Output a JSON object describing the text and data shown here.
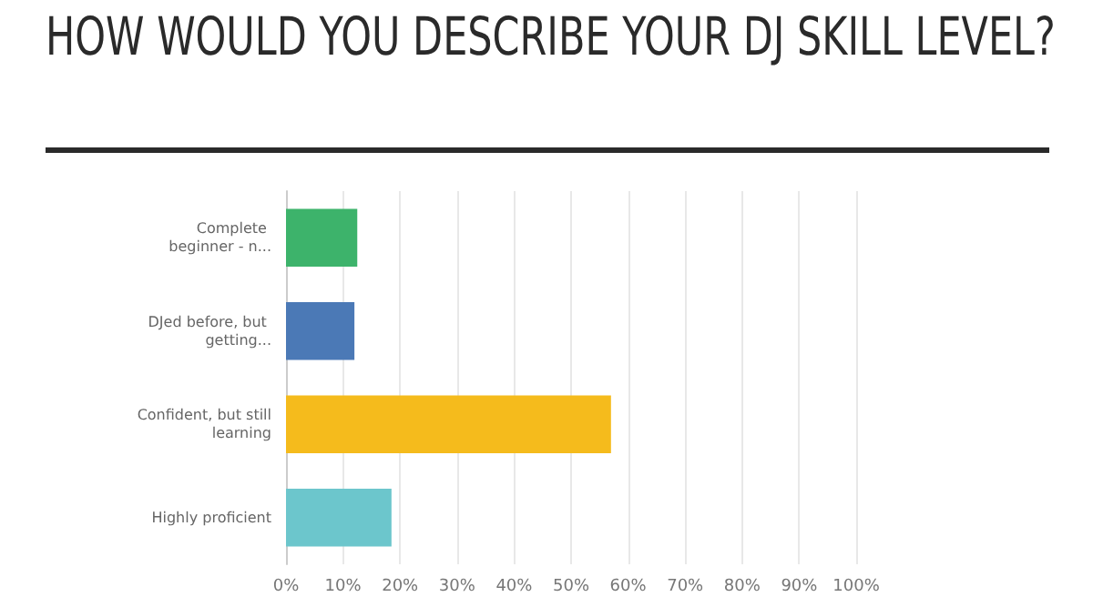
{
  "chart_data": {
    "type": "bar",
    "orientation": "horizontal",
    "title": "HOW WOULD YOU DESCRIBE YOUR DJ SKILL LEVEL?",
    "categories": [
      "Complete beginner - n...",
      "DJed before, but getting...",
      "Confident, but still learning",
      "Highly proficient"
    ],
    "values": [
      12.5,
      12,
      57,
      18.5
    ],
    "colors": [
      "#3db36b",
      "#4b79b6",
      "#f5bb1c",
      "#6cc6cc"
    ],
    "xlim": [
      0,
      100
    ],
    "xticks": [
      {
        "value": 0,
        "label": "0%"
      },
      {
        "value": 10,
        "label": "10%"
      },
      {
        "value": 20,
        "label": "20%"
      },
      {
        "value": 30,
        "label": "30%"
      },
      {
        "value": 40,
        "label": "40%"
      },
      {
        "value": 50,
        "label": "50%"
      },
      {
        "value": 60,
        "label": "60%"
      },
      {
        "value": 70,
        "label": "70%"
      },
      {
        "value": 80,
        "label": "80%"
      },
      {
        "value": 90,
        "label": "90%"
      },
      {
        "value": 100,
        "label": "100%"
      }
    ],
    "grid": "x"
  }
}
